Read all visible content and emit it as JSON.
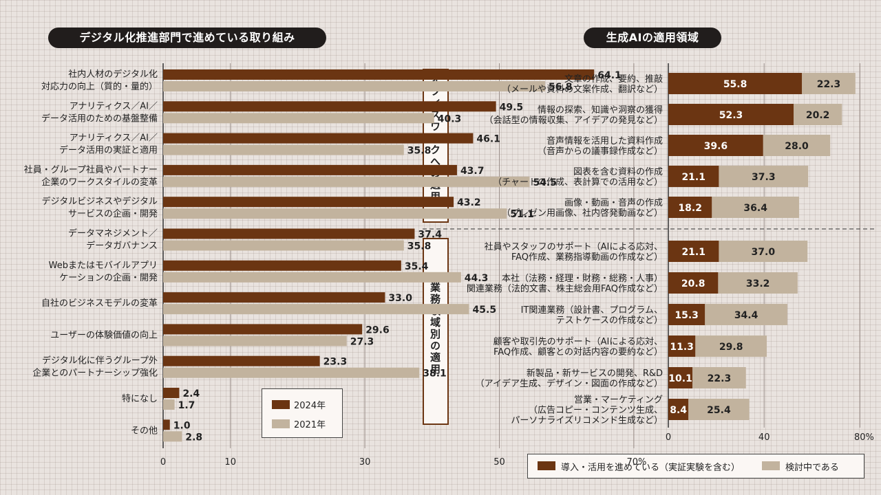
{
  "colors": {
    "primary": "#6b3512",
    "secondary": "#c2b39e",
    "title_bg": "#211d1c",
    "background": "#e9e3df"
  },
  "left_title": "デジタル化推進部門で進めている取り組み",
  "right_title": "生成AIの適用領域",
  "chart_data": [
    {
      "type": "bar",
      "orientation": "horizontal",
      "title": "デジタル化推進部門で進めている取り組み",
      "categories": [
        [
          "社内人材のデジタル化",
          "対応力の向上（質的・量的）"
        ],
        [
          "アナリティクス／AI／",
          "データ活用のための基盤整備"
        ],
        [
          "アナリティクス／AI／",
          "データ活用の実証と適用"
        ],
        [
          "社員・グループ社員やパートナー",
          "企業のワークスタイルの変革"
        ],
        [
          "デジタルビジネスやデジタル",
          "サービスの企画・開発"
        ],
        [
          "データマネジメント／",
          "データガバナンス"
        ],
        [
          "Webまたはモバイルアプリ",
          "ケーションの企画・開発"
        ],
        [
          "自社のビジネスモデルの変革"
        ],
        [
          "ユーザーの体験価値の向上"
        ],
        [
          "デジタル化に伴うグループ外",
          "企業とのパートナーシップ強化"
        ],
        [
          "特になし"
        ],
        [
          "その他"
        ]
      ],
      "series": [
        {
          "name": "2024年",
          "values": [
            64.1,
            49.5,
            46.1,
            43.7,
            43.2,
            37.4,
            35.4,
            33.0,
            29.6,
            23.3,
            2.4,
            1.0
          ]
        },
        {
          "name": "2021年",
          "values": [
            56.8,
            40.3,
            35.8,
            54.5,
            51.1,
            35.8,
            44.3,
            45.5,
            27.3,
            38.1,
            1.7,
            2.8
          ]
        }
      ],
      "xlim": [
        0,
        70
      ],
      "xticks": [
        "0",
        "10",
        "30",
        "50",
        "70%"
      ],
      "grid": true,
      "legend": "bottom-right"
    },
    {
      "type": "bar",
      "orientation": "horizontal",
      "stacked": true,
      "title": "生成AIの適用領域",
      "groups": [
        {
          "label": "オフィスワークへの適用",
          "count": 5
        },
        {
          "label": "業務領域別の適用",
          "count": 6
        }
      ],
      "categories": [
        [
          "文章の作成、要約、推敲",
          "（メールや資料の文案作成、翻訳など）"
        ],
        [
          "情報の探索、知識や洞察の獲得",
          "（会話型の情報収集、アイデアの発見など）"
        ],
        [
          "音声情報を活用した資料作成",
          "（音声からの議事録作成など）"
        ],
        [
          "図表を含む資料の作成",
          "（チャートの作成、表計算での活用など）"
        ],
        [
          "画像・動画・音声の作成",
          "（プレゼン用画像、社内啓発動画など）"
        ],
        [
          "社員やスタッフのサポート（AIによる応対、",
          "FAQ作成、業務指導動画の作成など）"
        ],
        [
          "本社（法務・経理・財務・総務・人事）",
          "関連業務（法的文書、株主総会用FAQ作成など）"
        ],
        [
          "IT関連業務（設計書、プログラム、",
          "テストケースの作成など）"
        ],
        [
          "顧客や取引先のサポート（AIによる応対、",
          "FAQ作成、顧客との対話内容の要約など）"
        ],
        [
          "新製品・新サービスの開発、R&D",
          "（アイデア生成、デザイン・図面の作成など）"
        ],
        [
          "営業・マーケティング",
          "（広告コピー・コンテンツ生成、",
          "パーソナライズリコメンド生成など）"
        ]
      ],
      "series": [
        {
          "name": "導入・活用を進めている（実証実験を含む）",
          "values": [
            55.8,
            52.3,
            39.6,
            21.1,
            18.2,
            21.1,
            20.8,
            15.3,
            11.3,
            10.1,
            8.4
          ]
        },
        {
          "name": "検討中である",
          "values": [
            22.3,
            20.2,
            28.0,
            37.3,
            36.4,
            37.0,
            33.2,
            34.4,
            29.8,
            22.3,
            25.4
          ]
        }
      ],
      "xlim": [
        0,
        80
      ],
      "xticks": [
        "0",
        "40",
        "80%"
      ],
      "grid": true,
      "legend": "bottom"
    }
  ]
}
